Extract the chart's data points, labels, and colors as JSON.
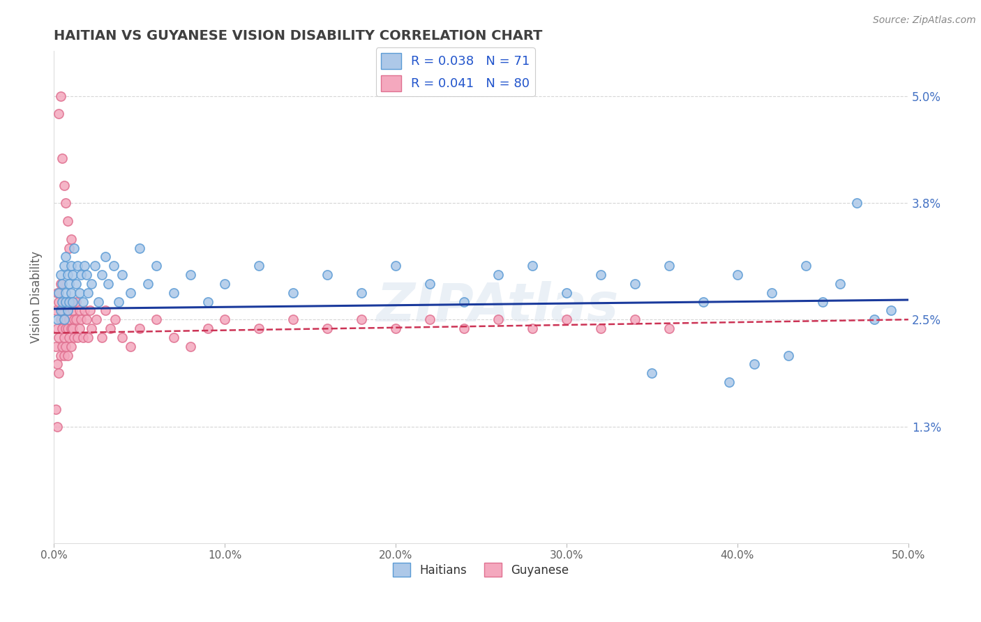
{
  "title": "HAITIAN VS GUYANESE VISION DISABILITY CORRELATION CHART",
  "source": "Source: ZipAtlas.com",
  "ylabel": "Vision Disability",
  "xlim": [
    0.0,
    0.5
  ],
  "ylim": [
    0.0,
    0.055
  ],
  "xticks": [
    0.0,
    0.1,
    0.2,
    0.3,
    0.4,
    0.5
  ],
  "xticklabels": [
    "0.0%",
    "10.0%",
    "20.0%",
    "30.0%",
    "40.0%",
    "50.0%"
  ],
  "yticks": [
    0.013,
    0.025,
    0.038,
    0.05
  ],
  "yticklabels": [
    "1.3%",
    "2.5%",
    "3.8%",
    "5.0%"
  ],
  "haitian_color": "#adc8e8",
  "haitian_edge": "#5b9bd5",
  "guyanese_color": "#f4a8be",
  "guyanese_edge": "#e07090",
  "trend_haitian_color": "#1a3a9c",
  "trend_guyanese_color": "#cc3355",
  "legend_label_haitian": "R = 0.038   N = 71",
  "legend_label_guyanese": "R = 0.041   N = 80",
  "legend_label_haitian_bottom": "Haitians",
  "legend_label_guyanese_bottom": "Guyanese",
  "N_haitian": 71,
  "N_guyanese": 80,
  "background_color": "#ffffff",
  "grid_color": "#cccccc",
  "title_color": "#404040",
  "axis_label_color": "#606060",
  "tick_label_color": "#606060",
  "right_ytick_color": "#4472c4",
  "watermark_text": "ZIPAtlas",
  "watermark_color": "#dde6f0",
  "watermark_alpha": 0.6,
  "haitian_x": [
    0.002,
    0.003,
    0.004,
    0.004,
    0.005,
    0.005,
    0.006,
    0.006,
    0.007,
    0.007,
    0.007,
    0.008,
    0.008,
    0.009,
    0.009,
    0.01,
    0.01,
    0.011,
    0.011,
    0.012,
    0.013,
    0.014,
    0.015,
    0.016,
    0.017,
    0.018,
    0.019,
    0.02,
    0.022,
    0.024,
    0.026,
    0.028,
    0.03,
    0.032,
    0.035,
    0.038,
    0.04,
    0.045,
    0.05,
    0.055,
    0.06,
    0.07,
    0.08,
    0.09,
    0.1,
    0.12,
    0.14,
    0.16,
    0.18,
    0.2,
    0.22,
    0.24,
    0.26,
    0.28,
    0.3,
    0.32,
    0.34,
    0.36,
    0.38,
    0.4,
    0.42,
    0.44,
    0.46,
    0.47,
    0.48,
    0.49,
    0.35,
    0.41,
    0.43,
    0.45,
    0.395
  ],
  "haitian_y": [
    0.025,
    0.028,
    0.026,
    0.03,
    0.027,
    0.029,
    0.025,
    0.031,
    0.027,
    0.028,
    0.032,
    0.026,
    0.03,
    0.029,
    0.027,
    0.031,
    0.028,
    0.03,
    0.027,
    0.033,
    0.029,
    0.031,
    0.028,
    0.03,
    0.027,
    0.031,
    0.03,
    0.028,
    0.029,
    0.031,
    0.027,
    0.03,
    0.032,
    0.029,
    0.031,
    0.027,
    0.03,
    0.028,
    0.033,
    0.029,
    0.031,
    0.028,
    0.03,
    0.027,
    0.029,
    0.031,
    0.028,
    0.03,
    0.028,
    0.031,
    0.029,
    0.027,
    0.03,
    0.031,
    0.028,
    0.03,
    0.029,
    0.031,
    0.027,
    0.03,
    0.028,
    0.031,
    0.029,
    0.038,
    0.025,
    0.026,
    0.019,
    0.02,
    0.021,
    0.027,
    0.018
  ],
  "guyanese_x": [
    0.001,
    0.001,
    0.002,
    0.002,
    0.002,
    0.003,
    0.003,
    0.003,
    0.004,
    0.004,
    0.004,
    0.005,
    0.005,
    0.005,
    0.006,
    0.006,
    0.006,
    0.007,
    0.007,
    0.007,
    0.008,
    0.008,
    0.008,
    0.009,
    0.009,
    0.01,
    0.01,
    0.01,
    0.011,
    0.011,
    0.012,
    0.012,
    0.013,
    0.013,
    0.014,
    0.015,
    0.015,
    0.016,
    0.017,
    0.018,
    0.019,
    0.02,
    0.021,
    0.022,
    0.025,
    0.028,
    0.03,
    0.033,
    0.036,
    0.04,
    0.045,
    0.05,
    0.06,
    0.07,
    0.08,
    0.09,
    0.1,
    0.12,
    0.14,
    0.16,
    0.18,
    0.2,
    0.22,
    0.24,
    0.26,
    0.28,
    0.3,
    0.32,
    0.34,
    0.36,
    0.005,
    0.006,
    0.007,
    0.008,
    0.009,
    0.01,
    0.004,
    0.003,
    0.002,
    0.001
  ],
  "guyanese_y": [
    0.022,
    0.026,
    0.024,
    0.02,
    0.028,
    0.023,
    0.027,
    0.019,
    0.025,
    0.021,
    0.029,
    0.024,
    0.022,
    0.026,
    0.023,
    0.025,
    0.021,
    0.027,
    0.024,
    0.022,
    0.026,
    0.024,
    0.021,
    0.025,
    0.023,
    0.027,
    0.024,
    0.022,
    0.026,
    0.024,
    0.025,
    0.023,
    0.027,
    0.025,
    0.023,
    0.026,
    0.024,
    0.025,
    0.023,
    0.026,
    0.025,
    0.023,
    0.026,
    0.024,
    0.025,
    0.023,
    0.026,
    0.024,
    0.025,
    0.023,
    0.022,
    0.024,
    0.025,
    0.023,
    0.022,
    0.024,
    0.025,
    0.024,
    0.025,
    0.024,
    0.025,
    0.024,
    0.025,
    0.024,
    0.025,
    0.024,
    0.025,
    0.024,
    0.025,
    0.024,
    0.043,
    0.04,
    0.038,
    0.036,
    0.033,
    0.034,
    0.05,
    0.048,
    0.013,
    0.015
  ]
}
